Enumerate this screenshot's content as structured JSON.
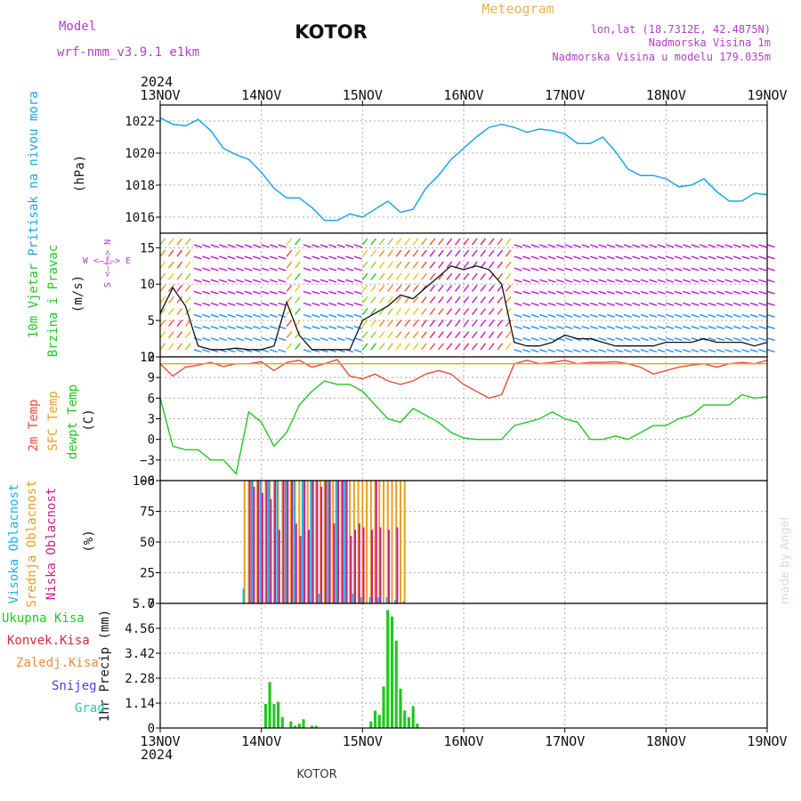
{
  "header": {
    "model_label": "Model",
    "model_name": "wrf-nmm_v3.9.1 e1km",
    "station": "KOTOR",
    "product": "Meteogram",
    "lonlat": "lon,lat (18.7312E, 42.4875N)",
    "elevation": "Nadmorska Visina 1m",
    "model_elevation": "Nadmorska Visina u modelu 179.035m",
    "year_top": "2024",
    "year_bottom": "2024",
    "footer_station": "KOTOR",
    "credit": "made by Angel"
  },
  "colors": {
    "pressure": "#1aa7e6",
    "temp2m": "#f04a3a",
    "sfc_temp": "#e8a020",
    "dewpoint": "#22c822",
    "high_cloud": "#18b4e6",
    "mid_cloud": "#e8a020",
    "low_cloud": "#c81e8c",
    "precip_total": "#22c822",
    "grid": "#aaaaaa",
    "title_purple": "#b040c8",
    "title_orange": "#e8b450"
  },
  "chart_data": [
    {
      "type": "line",
      "title": "",
      "ylabel_lines": [
        "Pritisak na nivou mora",
        "(hPa)"
      ],
      "x_ticks": [
        "13NOV",
        "14NOV",
        "15NOV",
        "16NOV",
        "17NOV",
        "18NOV",
        "19NOV"
      ],
      "ylim": [
        1015,
        1023
      ],
      "y_ticks": [
        1016,
        1018,
        1020,
        1022
      ],
      "grid": true,
      "series": [
        {
          "name": "",
          "x_hours": [
            0,
            3,
            6,
            9,
            12,
            15,
            18,
            21,
            24,
            27,
            30,
            33,
            36,
            39,
            42,
            45,
            48,
            51,
            54,
            57,
            60,
            63,
            66,
            69,
            72,
            75,
            78,
            81,
            84,
            87,
            90,
            93,
            96,
            99,
            102,
            105,
            108,
            111,
            114,
            117,
            120,
            123,
            126,
            129,
            132,
            135,
            138,
            141,
            144
          ],
          "values": [
            1022.2,
            1021.8,
            1021.7,
            1022.1,
            1021.4,
            1020.3,
            1019.9,
            1019.6,
            1018.8,
            1017.8,
            1017.2,
            1017.2,
            1016.6,
            1015.8,
            1015.8,
            1016.2,
            1016.0,
            1016.5,
            1017.0,
            1016.3,
            1016.5,
            1017.8,
            1018.6,
            1019.6,
            1020.3,
            1021.0,
            1021.6,
            1021.8,
            1021.6,
            1021.3,
            1021.5,
            1021.4,
            1021.2,
            1020.6,
            1020.6,
            1021.0,
            1020.1,
            1019.0,
            1018.6,
            1018.6,
            1018.4,
            1017.9,
            1018.0,
            1018.4,
            1017.6,
            1017.0,
            1017.0,
            1017.5,
            1017.4
          ]
        }
      ]
    },
    {
      "type": "line",
      "title": "",
      "ylabel_lines": [
        "10m Vjetar",
        "Brzina i Pravac",
        "(m/s)"
      ],
      "compass": {
        "w": "W",
        "e": "E",
        "n": "N",
        "s": "S"
      },
      "ylim": [
        0,
        17
      ],
      "y_ticks": [
        0,
        5,
        10,
        15
      ],
      "grid": true,
      "series": [
        {
          "name": "",
          "x_hours": [
            0,
            3,
            6,
            9,
            12,
            15,
            18,
            21,
            24,
            27,
            30,
            33,
            36,
            39,
            42,
            45,
            48,
            51,
            54,
            57,
            60,
            63,
            66,
            69,
            72,
            75,
            78,
            81,
            84,
            87,
            90,
            93,
            96,
            99,
            102,
            105,
            108,
            111,
            114,
            117,
            120,
            123,
            126,
            129,
            132,
            135,
            138,
            141,
            144
          ],
          "values": [
            6,
            9.5,
            7,
            1.5,
            1,
            1,
            1.2,
            1,
            1,
            1.5,
            7.5,
            3,
            1,
            1,
            1,
            1,
            5,
            6,
            7,
            8.5,
            8,
            9.5,
            11,
            12.5,
            12,
            12.5,
            12,
            10,
            2,
            1.5,
            1.5,
            2,
            3,
            2.5,
            2.5,
            2,
            1.5,
            1.5,
            1.5,
            1.5,
            2,
            2,
            2,
            2.5,
            2,
            2,
            2,
            1.5,
            2
          ]
        }
      ]
    },
    {
      "type": "line",
      "title": "",
      "ylabel_lines": [
        "2m Temp",
        "SFC Temp",
        "dewpt Temp",
        "(C)"
      ],
      "ylim": [
        -6,
        12
      ],
      "y_ticks": [
        -6,
        -3,
        0,
        3,
        6,
        9,
        12
      ],
      "grid": true,
      "series": [
        {
          "name": "2m Temp",
          "x_hours": [
            0,
            3,
            6,
            9,
            12,
            15,
            18,
            21,
            24,
            27,
            30,
            33,
            36,
            39,
            42,
            45,
            48,
            51,
            54,
            57,
            60,
            63,
            66,
            69,
            72,
            75,
            78,
            81,
            84,
            87,
            90,
            93,
            96,
            99,
            102,
            105,
            108,
            111,
            114,
            117,
            120,
            123,
            126,
            129,
            132,
            135,
            138,
            141,
            144
          ],
          "values": [
            11,
            9.2,
            10.5,
            10.8,
            11.2,
            10.6,
            11,
            11,
            11.3,
            10,
            11.2,
            11.5,
            10.5,
            11,
            11.6,
            9.2,
            8.8,
            9.5,
            8.5,
            8,
            8.5,
            9.5,
            10,
            9.5,
            8,
            7,
            6,
            6.5,
            11,
            11.5,
            11,
            11.2,
            11.5,
            11,
            11.2,
            11.2,
            11.3,
            11,
            10.5,
            9.5,
            10,
            10.5,
            10.8,
            11,
            10.5,
            11,
            11.2,
            11,
            11.5
          ]
        },
        {
          "name": "SFC Temp",
          "x_hours": [
            0,
            144
          ],
          "values": [
            11,
            11
          ]
        },
        {
          "name": "dewpt Temp",
          "x_hours": [
            0,
            3,
            6,
            9,
            12,
            15,
            18,
            21,
            24,
            27,
            30,
            33,
            36,
            39,
            42,
            45,
            48,
            51,
            54,
            57,
            60,
            63,
            66,
            69,
            72,
            75,
            78,
            81,
            84,
            87,
            90,
            93,
            96,
            99,
            102,
            105,
            108,
            111,
            114,
            117,
            120,
            123,
            126,
            129,
            132,
            135,
            138,
            141,
            144
          ],
          "values": [
            6,
            -1,
            -1.5,
            -1.5,
            -3,
            -3,
            -5,
            4,
            2.5,
            -1,
            1,
            5,
            7,
            8.5,
            8,
            8,
            7,
            5,
            3,
            2.5,
            4.5,
            3.5,
            2.5,
            1,
            0.2,
            0,
            0,
            0,
            2,
            2.5,
            3,
            4,
            3,
            2.5,
            0,
            0,
            0.5,
            0,
            1,
            2,
            2,
            3,
            3.5,
            5,
            5,
            5,
            6.5,
            6,
            6.2
          ]
        }
      ]
    },
    {
      "type": "bar",
      "title": "",
      "ylabel_lines": [
        "Visoka Oblacnost",
        "Srednja Oblacnost",
        "Niska Oblacnost",
        "(%)"
      ],
      "ylim": [
        0,
        100
      ],
      "y_ticks": [
        0,
        25,
        50,
        75,
        100
      ],
      "grid": true,
      "series": [
        {
          "name": "Srednja Oblacnost",
          "x_hours": [
            20,
            21,
            22,
            23,
            24,
            25,
            26,
            27,
            28,
            29,
            30,
            31,
            32,
            33,
            34,
            35,
            36,
            37,
            38,
            39,
            40,
            41,
            42,
            43,
            44,
            45,
            46,
            47,
            48,
            49,
            50,
            51,
            52,
            53,
            54,
            55,
            56,
            57,
            58
          ],
          "values": [
            100,
            100,
            100,
            100,
            100,
            100,
            100,
            100,
            100,
            100,
            100,
            100,
            100,
            100,
            100,
            100,
            100,
            100,
            100,
            100,
            100,
            100,
            100,
            100,
            100,
            100,
            100,
            100,
            100,
            100,
            100,
            100,
            100,
            100,
            100,
            100,
            100,
            100,
            100
          ]
        },
        {
          "name": "Niska Oblacnost",
          "x_hours": [
            21,
            22,
            23,
            24,
            25,
            26,
            27,
            28,
            29,
            30,
            31,
            32,
            33,
            34,
            35,
            36,
            37,
            38,
            39,
            40,
            41,
            42,
            43,
            44,
            45,
            46,
            47,
            48,
            49,
            50,
            51,
            52,
            53,
            54,
            55,
            56,
            57
          ],
          "values": [
            100,
            95,
            100,
            90,
            100,
            85,
            100,
            60,
            100,
            100,
            100,
            65,
            55,
            100,
            60,
            100,
            100,
            95,
            100,
            100,
            65,
            100,
            100,
            100,
            55,
            60,
            65,
            62,
            0,
            60,
            100,
            62,
            0,
            60,
            0,
            62,
            0
          ]
        },
        {
          "name": "Visoka Oblacnost",
          "x_hours": [
            20,
            22,
            24,
            26,
            28,
            30,
            32,
            34,
            36,
            38,
            40,
            42,
            44,
            46,
            48,
            50,
            52,
            54,
            56,
            58
          ],
          "values": [
            12,
            100,
            100,
            100,
            100,
            100,
            100,
            100,
            100,
            8,
            100,
            100,
            100,
            8,
            5,
            5,
            5,
            5,
            3,
            2
          ]
        }
      ]
    },
    {
      "type": "bar",
      "title": "",
      "ylabel_lines": [
        "1hr Precip (mm)"
      ],
      "legend": [
        "Ukupna Kisa",
        "Konvek.Kisa",
        "Zaledj.Kisa",
        "Snijeg",
        "Grad"
      ],
      "ylim": [
        0,
        5.7
      ],
      "y_ticks": [
        0,
        1.14,
        2.28,
        3.42,
        4.56,
        5.7
      ],
      "grid": true,
      "series": [
        {
          "name": "Ukupna Kisa",
          "x_hours": [
            25,
            26,
            27,
            28,
            29,
            31,
            32,
            33,
            34,
            36,
            37,
            50,
            51,
            52,
            53,
            54,
            55,
            56,
            57,
            58,
            59,
            60,
            61
          ],
          "values": [
            1.1,
            2.1,
            1.1,
            1.2,
            0.5,
            0.3,
            0.1,
            0.2,
            0.4,
            0.1,
            0.1,
            0.3,
            0.8,
            0.6,
            1.9,
            5.4,
            5.1,
            4.0,
            1.8,
            0.8,
            0.5,
            1.0,
            0.2
          ]
        }
      ]
    }
  ]
}
